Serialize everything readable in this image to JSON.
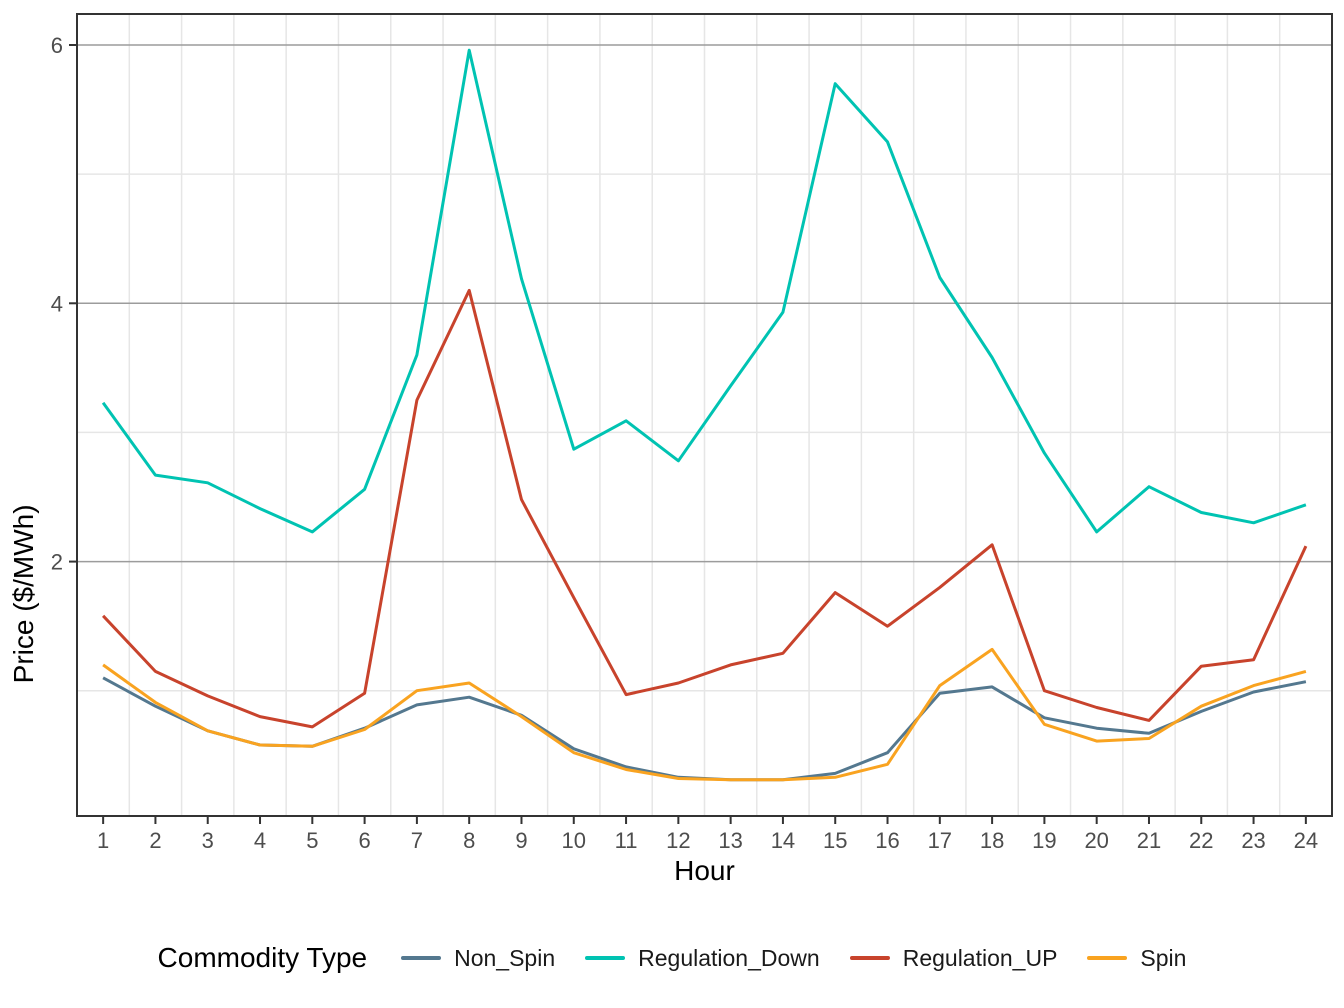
{
  "chart_data": {
    "type": "line",
    "title": "",
    "xlabel": "Hour",
    "ylabel": "Price ($/MWh)",
    "legend_title": "Commodity Type",
    "legend_position": "bottom",
    "x": [
      1,
      2,
      3,
      4,
      5,
      6,
      7,
      8,
      9,
      10,
      11,
      12,
      13,
      14,
      15,
      16,
      17,
      18,
      19,
      20,
      21,
      22,
      23,
      24
    ],
    "series": [
      {
        "name": "Non_Spin",
        "color": "#54788F",
        "values": [
          1.1,
          0.88,
          0.69,
          0.58,
          0.57,
          0.71,
          0.89,
          0.95,
          0.81,
          0.55,
          0.41,
          0.33,
          0.31,
          0.31,
          0.36,
          0.52,
          0.98,
          1.03,
          0.79,
          0.71,
          0.67,
          0.84,
          0.99,
          1.07
        ]
      },
      {
        "name": "Regulation_Down",
        "color": "#00C3B2",
        "values": [
          3.23,
          2.67,
          2.61,
          2.41,
          2.23,
          2.56,
          3.6,
          5.96,
          4.19,
          2.87,
          3.09,
          2.78,
          3.36,
          3.93,
          5.7,
          5.25,
          4.2,
          3.58,
          2.84,
          2.23,
          2.58,
          2.38,
          2.3,
          2.44
        ]
      },
      {
        "name": "Regulation_UP",
        "color": "#C8432C",
        "values": [
          1.58,
          1.15,
          0.96,
          0.8,
          0.72,
          0.98,
          3.25,
          4.1,
          2.48,
          1.72,
          0.97,
          1.06,
          1.2,
          1.29,
          1.76,
          1.5,
          1.8,
          2.13,
          1.0,
          0.87,
          0.77,
          1.19,
          1.24,
          2.12
        ]
      },
      {
        "name": "Spin",
        "color": "#F9A320",
        "values": [
          1.2,
          0.91,
          0.69,
          0.58,
          0.57,
          0.7,
          1.0,
          1.06,
          0.8,
          0.52,
          0.39,
          0.32,
          0.31,
          0.31,
          0.33,
          0.43,
          1.04,
          1.32,
          0.74,
          0.61,
          0.63,
          0.88,
          1.04,
          1.15
        ]
      }
    ],
    "axes": {
      "x_ticks": [
        1,
        2,
        3,
        4,
        5,
        6,
        7,
        8,
        9,
        10,
        11,
        12,
        13,
        14,
        15,
        16,
        17,
        18,
        19,
        20,
        21,
        22,
        23,
        24
      ],
      "y_ticks": [
        2,
        4,
        6
      ],
      "y_minor": [
        1,
        3,
        5
      ],
      "x_domain": [
        0.5,
        24.5
      ],
      "y_domain": [
        0.03,
        6.24
      ],
      "grid": "on"
    },
    "style": {
      "panel_border_color": "#333333",
      "major_grid_color": "#9C9C9C",
      "minor_grid_color": "#E6E6E6",
      "tick_color": "#333333",
      "tick_label_color": "#4D4D4D",
      "line_width": 3
    }
  }
}
